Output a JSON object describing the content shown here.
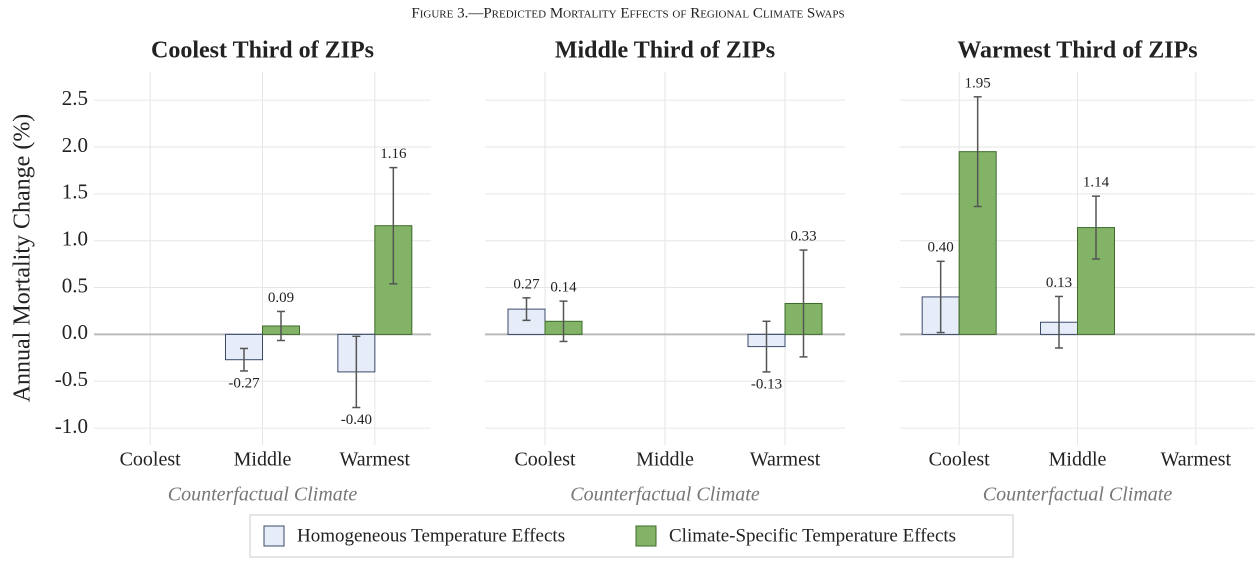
{
  "title": "Figure 3.—Predicted Mortality Effects of Regional Climate Swaps",
  "chart_data": [
    {
      "type": "bar",
      "title": "Coolest Third of ZIPs",
      "ylabel": "Annual Mortality Change (%)",
      "xlabel": "Counterfactual Climate",
      "categories": [
        "Coolest",
        "Middle",
        "Warmest"
      ],
      "ylim": [
        -1.18,
        2.8
      ],
      "yticks": [
        {
          "value": -1.0,
          "label": "-1.0"
        },
        -0.5,
        {
          "value": 0.0,
          "label": "0.0"
        },
        0.5,
        {
          "value": 1.0,
          "label": "1.0"
        },
        1.5,
        {
          "value": 2.0,
          "label": "2.0"
        },
        2.5
      ],
      "grid": true,
      "series": [
        {
          "name": "Homogeneous Temperature Effects",
          "color": "#e6ecf8",
          "values": [
            null,
            -0.27,
            -0.4
          ],
          "errors": [
            null,
            0.12,
            0.38
          ],
          "value_labels": [
            null,
            "-0.27",
            "-0.40"
          ]
        },
        {
          "name": "Climate-Specific Temperature Effects",
          "color": "#82b366",
          "values": [
            null,
            0.09,
            1.16
          ],
          "errors": [
            null,
            0.155,
            0.62
          ],
          "value_labels": [
            null,
            "0.09",
            "1.16"
          ]
        }
      ]
    },
    {
      "type": "bar",
      "title": "Middle Third of ZIPs",
      "xlabel": "Counterfactual Climate",
      "categories": [
        "Coolest",
        "Middle",
        "Warmest"
      ],
      "series": [
        {
          "color": "#e6ecf8",
          "values": [
            0.27,
            null,
            -0.13
          ],
          "errors": [
            0.12,
            null,
            0.27
          ],
          "value_labels": [
            "0.27",
            null,
            "-0.13"
          ]
        },
        {
          "color": "#82b366",
          "values": [
            0.14,
            null,
            0.33
          ],
          "errors": [
            0.215,
            null,
            0.57
          ],
          "value_labels": [
            "0.14",
            null,
            "0.33"
          ]
        }
      ]
    },
    {
      "type": "bar",
      "title": "Warmest Third of ZIPs",
      "xlabel": "Counterfactual Climate",
      "categories": [
        "Coolest",
        "Middle",
        "Warmest"
      ],
      "series": [
        {
          "color": "#e6ecf8",
          "values": [
            0.4,
            0.13,
            null
          ],
          "errors": [
            0.38,
            0.275,
            null
          ],
          "value_labels": [
            "0.40",
            "0.13",
            null
          ]
        },
        {
          "color": "#82b366",
          "values": [
            1.95,
            1.14,
            null
          ],
          "errors": [
            0.585,
            0.335,
            null
          ],
          "value_labels": [
            "1.95",
            "1.14",
            null
          ]
        }
      ]
    }
  ]
}
